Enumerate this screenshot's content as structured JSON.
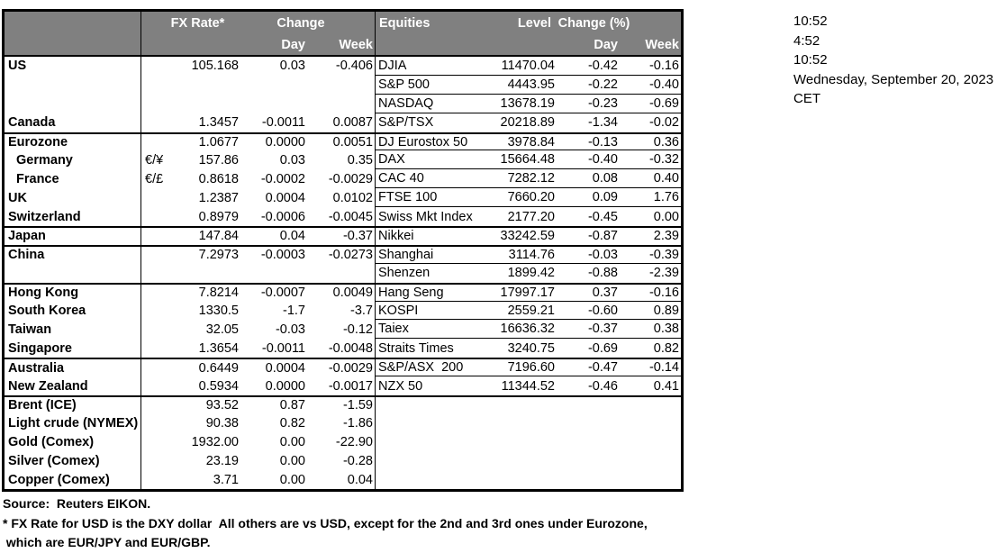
{
  "colors": {
    "header_bg": "#808080",
    "header_text": "#ffffff",
    "border": "#000000",
    "background": "#ffffff"
  },
  "header": {
    "fx": {
      "rate": "FX Rate*",
      "change": "Change",
      "day": "Day",
      "week": "Week"
    },
    "eq": {
      "title": "Equities",
      "level": "Level",
      "change": "Change (%)",
      "day": "Day",
      "week": "Week"
    }
  },
  "timestamps": [
    "10:52",
    "4:52",
    "10:52",
    "Wednesday, September 20, 2023",
    "CET"
  ],
  "rows": [
    {
      "name": "US",
      "pair": "",
      "rate": "105.168",
      "day": "0.03",
      "week": "-0.406",
      "equity": "DJIA",
      "level": "11470.04",
      "eday": "-0.42",
      "eweek": "-0.16",
      "group_start": false,
      "indent": false
    },
    {
      "name": "",
      "pair": "",
      "rate": "",
      "day": "",
      "week": "",
      "equity": "S&P 500",
      "level": "4443.95",
      "eday": "-0.22",
      "eweek": "-0.40",
      "group_start": false,
      "indent": false
    },
    {
      "name": "",
      "pair": "",
      "rate": "",
      "day": "",
      "week": "",
      "equity": "NASDAQ",
      "level": "13678.19",
      "eday": "-0.23",
      "eweek": "-0.69",
      "group_start": false,
      "indent": false
    },
    {
      "name": "Canada",
      "pair": "",
      "rate": "1.3457",
      "day": "-0.0011",
      "week": "0.0087",
      "equity": "S&P/TSX",
      "level": "20218.89",
      "eday": "-1.34",
      "eweek": "-0.02",
      "group_start": false,
      "indent": false
    },
    {
      "name": "Eurozone",
      "pair": "",
      "rate": "1.0677",
      "day": "0.0000",
      "week": "0.0051",
      "equity": "DJ Eurostox 50",
      "level": "3978.84",
      "eday": "-0.13",
      "eweek": "0.36",
      "group_start": true,
      "indent": false
    },
    {
      "name": "Germany",
      "pair": "€/¥",
      "rate": "157.86",
      "day": "0.03",
      "week": "0.35",
      "equity": "DAX",
      "level": "15664.48",
      "eday": "-0.40",
      "eweek": "-0.32",
      "group_start": false,
      "indent": true
    },
    {
      "name": "France",
      "pair": "€/£",
      "rate": "0.8618",
      "day": "-0.0002",
      "week": "-0.0029",
      "equity": "CAC 40",
      "level": "7282.12",
      "eday": "0.08",
      "eweek": "0.40",
      "group_start": false,
      "indent": true
    },
    {
      "name": "UK",
      "pair": "",
      "rate": "1.2387",
      "day": "0.0004",
      "week": "0.0102",
      "equity": "FTSE 100",
      "level": "7660.20",
      "eday": "0.09",
      "eweek": "1.76",
      "group_start": false,
      "indent": false
    },
    {
      "name": "Switzerland",
      "pair": "",
      "rate": "0.8979",
      "day": "-0.0006",
      "week": "-0.0045",
      "equity": "Swiss Mkt Index",
      "level": "2177.20",
      "eday": "-0.45",
      "eweek": "0.00",
      "group_start": false,
      "indent": false
    },
    {
      "name": "Japan",
      "pair": "",
      "rate": "147.84",
      "day": "0.04",
      "week": "-0.37",
      "equity": "Nikkei",
      "level": "33242.59",
      "eday": "-0.87",
      "eweek": "2.39",
      "group_start": true,
      "indent": false
    },
    {
      "name": "China",
      "pair": "",
      "rate": "7.2973",
      "day": "-0.0003",
      "week": "-0.0273",
      "equity": "Shanghai",
      "level": "3114.76",
      "eday": "-0.03",
      "eweek": "-0.39",
      "group_start": true,
      "indent": false
    },
    {
      "name": "",
      "pair": "",
      "rate": "",
      "day": "",
      "week": "",
      "equity": "Shenzen",
      "level": "1899.42",
      "eday": "-0.88",
      "eweek": "-2.39",
      "group_start": false,
      "indent": false
    },
    {
      "name": "Hong Kong",
      "pair": "",
      "rate": "7.8214",
      "day": "-0.0007",
      "week": "0.0049",
      "equity": "Hang Seng",
      "level": "17997.17",
      "eday": "0.37",
      "eweek": "-0.16",
      "group_start": true,
      "indent": false
    },
    {
      "name": "South Korea",
      "pair": "",
      "rate": "1330.5",
      "day": "-1.7",
      "week": "-3.7",
      "equity": "KOSPI",
      "level": "2559.21",
      "eday": "-0.60",
      "eweek": "0.89",
      "group_start": false,
      "indent": false
    },
    {
      "name": "Taiwan",
      "pair": "",
      "rate": "32.05",
      "day": "-0.03",
      "week": "-0.12",
      "equity": "Taiex",
      "level": "16636.32",
      "eday": "-0.37",
      "eweek": "0.38",
      "group_start": false,
      "indent": false
    },
    {
      "name": "Singapore",
      "pair": "",
      "rate": "1.3654",
      "day": "-0.0011",
      "week": "-0.0048",
      "equity": "Straits Times",
      "level": "3240.75",
      "eday": "-0.69",
      "eweek": "0.82",
      "group_start": false,
      "indent": false
    },
    {
      "name": "Australia",
      "pair": "",
      "rate": "0.6449",
      "day": "0.0004",
      "week": "-0.0029",
      "equity": "S&P/ASX  200",
      "level": "7196.60",
      "eday": "-0.47",
      "eweek": "-0.14",
      "group_start": true,
      "indent": false
    },
    {
      "name": "New Zealand",
      "pair": "",
      "rate": "0.5934",
      "day": "0.0000",
      "week": "-0.0017",
      "equity": "NZX 50",
      "level": "11344.52",
      "eday": "-0.46",
      "eweek": "0.41",
      "group_start": false,
      "indent": false
    },
    {
      "name": "Brent (ICE)",
      "pair": "",
      "rate": "93.52",
      "day": "0.87",
      "week": "-1.59",
      "equity": "",
      "level": "",
      "eday": "",
      "eweek": "",
      "group_start": true,
      "indent": false
    },
    {
      "name": "Light crude (NYMEX)",
      "pair": "",
      "rate": "90.38",
      "day": "0.82",
      "week": "-1.86",
      "equity": "",
      "level": "",
      "eday": "",
      "eweek": "",
      "group_start": false,
      "indent": false
    },
    {
      "name": "Gold (Comex)",
      "pair": "",
      "rate": "1932.00",
      "day": "0.00",
      "week": "-22.90",
      "equity": "",
      "level": "",
      "eday": "",
      "eweek": "",
      "group_start": false,
      "indent": false
    },
    {
      "name": "Silver (Comex)",
      "pair": "",
      "rate": "23.19",
      "day": "0.00",
      "week": "-0.28",
      "equity": "",
      "level": "",
      "eday": "",
      "eweek": "",
      "group_start": false,
      "indent": false
    },
    {
      "name": "Copper (Comex)",
      "pair": "",
      "rate": "3.71",
      "day": "0.00",
      "week": "0.04",
      "equity": "",
      "level": "",
      "eday": "",
      "eweek": "",
      "group_start": false,
      "indent": false
    }
  ],
  "footer": {
    "source": "Source:  Reuters EIKON.",
    "note1": "* FX Rate for USD is the DXY dollar  All others are vs USD, except for the 2nd and 3rd ones under Eurozone,",
    "note2": " which are EUR/JPY and EUR/GBP."
  }
}
